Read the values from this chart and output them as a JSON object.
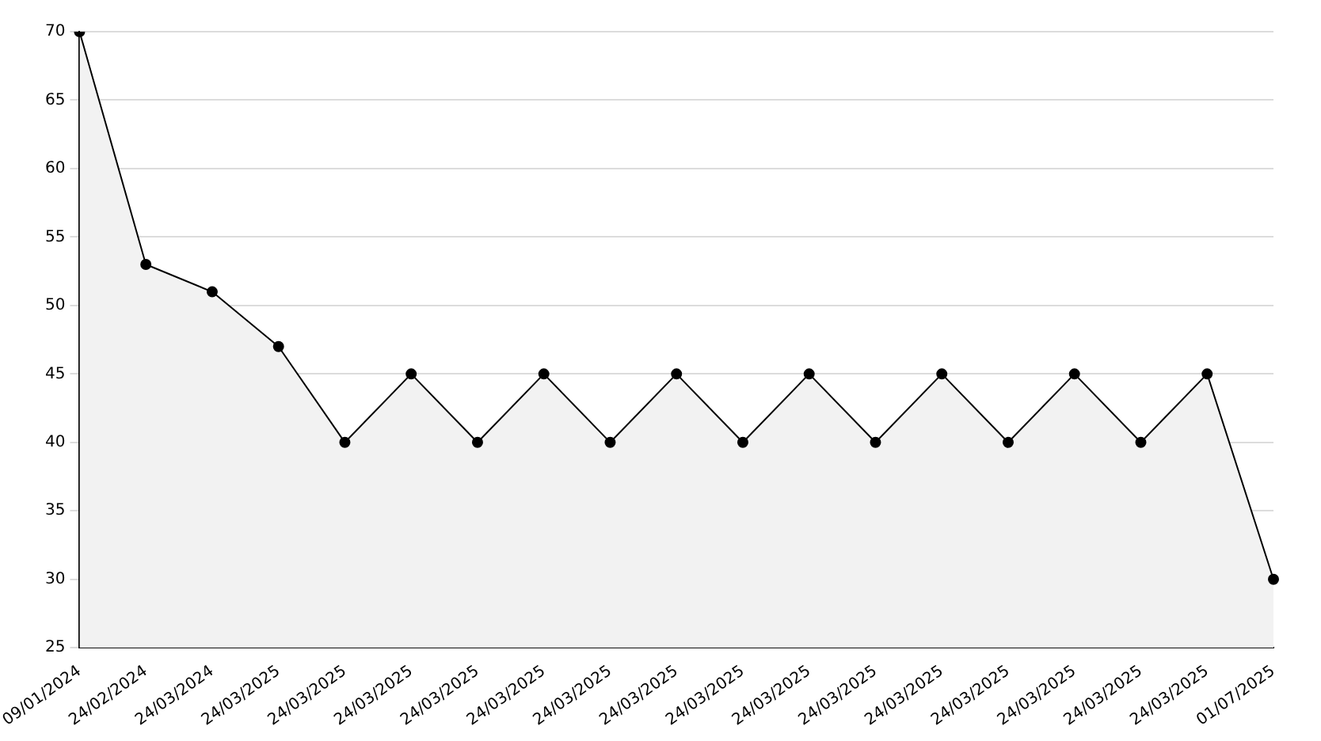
{
  "chart_data": {
    "type": "area",
    "categories": [
      "09/01/2024",
      "24/02/2024",
      "24/03/2024",
      "24/03/2025",
      "24/03/2025",
      "24/03/2025",
      "24/03/2025",
      "24/03/2025",
      "24/03/2025",
      "24/03/2025",
      "24/03/2025",
      "24/03/2025",
      "24/03/2025",
      "24/03/2025",
      "24/03/2025",
      "24/03/2025",
      "24/03/2025",
      "24/03/2025",
      "01/07/2025"
    ],
    "series": [
      {
        "color": "#000000",
        "values": [
          70,
          53,
          51,
          47,
          40,
          45,
          40,
          45,
          40,
          45,
          40,
          45,
          40,
          45,
          40,
          45,
          40,
          45,
          30
        ]
      }
    ],
    "ylim": [
      25,
      70
    ],
    "yticks": [
      25,
      30,
      35,
      40,
      45,
      50,
      55,
      60,
      65,
      70
    ],
    "grid": "y",
    "legend": false,
    "marker": "circle",
    "line_style": "solid"
  }
}
